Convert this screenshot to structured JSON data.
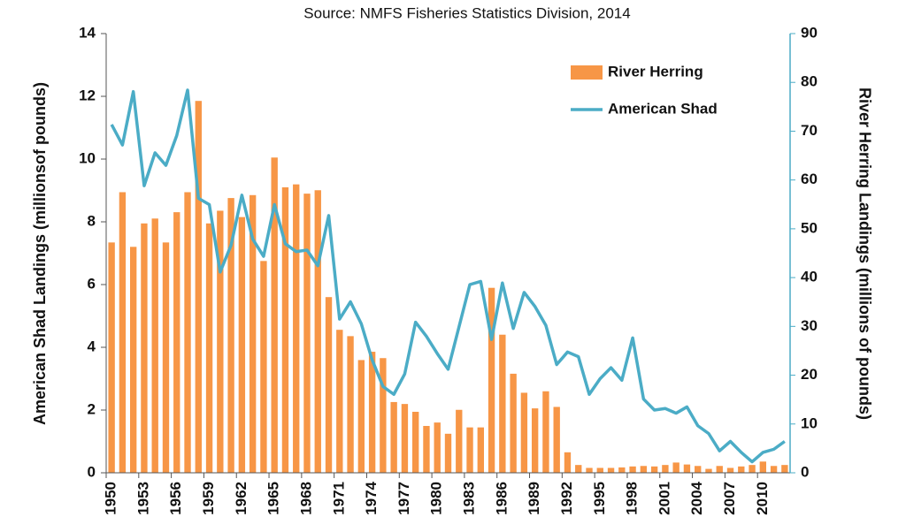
{
  "chart_data": {
    "type": "bar",
    "title": "Source: NMFS Fisheries Statistics Division, 2014",
    "y_label": "American Shad Landings (millionsof pounds)",
    "y2_label": "River Herring Landings (millions of pounds)",
    "categories": [
      "1950",
      null,
      null,
      "1953",
      null,
      null,
      "1956",
      null,
      null,
      "1959",
      null,
      null,
      "1962",
      null,
      null,
      "1965",
      null,
      null,
      "1968",
      null,
      null,
      "1971",
      null,
      null,
      "1974",
      null,
      null,
      "1977",
      null,
      null,
      "1980",
      null,
      null,
      "1983",
      null,
      null,
      "1986",
      null,
      null,
      "1989",
      null,
      null,
      "1992",
      null,
      null,
      "1995",
      null,
      null,
      "1998",
      null,
      null,
      "2001",
      null,
      null,
      "2004",
      null,
      null,
      "2007",
      null,
      null,
      "2010",
      null,
      null
    ],
    "series": [
      {
        "name": "River Herring",
        "type": "bar",
        "axis": "y2",
        "color": "#f79646",
        "values": [
          47.2,
          57.5,
          46.3,
          51.1,
          52.1,
          47.2,
          53.4,
          57.5,
          76.2,
          51.1,
          53.7,
          56.3,
          52.4,
          56.9,
          43.4,
          64.6,
          58.5,
          59.1,
          57.2,
          57.9,
          36,
          29.3,
          28,
          23.1,
          24.8,
          23.5,
          14.5,
          14.1,
          12.5,
          9.6,
          10.3,
          8,
          12.9,
          9.3,
          9.3,
          37.9,
          28.3,
          20.3,
          16.4,
          13.2,
          16.7,
          13.5,
          4.2,
          1.6,
          1,
          1,
          1,
          1.1,
          1.3,
          1.4,
          1.3,
          1.6,
          2.1,
          1.7,
          1.4,
          0.8,
          1.4,
          1,
          1.3,
          1.6,
          2.3,
          1.4,
          1.6
        ]
      },
      {
        "name": "American Shad",
        "type": "line",
        "color": "#4bacc6",
        "values": [
          11.1,
          10.45,
          12.15,
          9.15,
          10.2,
          9.8,
          10.75,
          12.2,
          8.75,
          8.55,
          6.4,
          7.25,
          8.85,
          7.45,
          6.9,
          8.55,
          7.3,
          7.05,
          7.1,
          6.6,
          8.2,
          4.9,
          5.45,
          4.75,
          3.6,
          2.75,
          2.5,
          3.15,
          4.8,
          4.35,
          3.8,
          3.3,
          4.65,
          6.0,
          6.1,
          4.25,
          6.05,
          4.6,
          5.75,
          5.3,
          4.7,
          3.45,
          3.85,
          3.7,
          2.5,
          3.0,
          3.35,
          2.95,
          4.3,
          2.35,
          2.0,
          2.05,
          1.9,
          2.1,
          1.5,
          1.25,
          0.7,
          1.0,
          0.65,
          0.35,
          0.65,
          0.75,
          1.0
        ]
      }
    ],
    "ylim": [
      0,
      14
    ],
    "yticks": [
      0,
      2,
      4,
      6,
      8,
      10,
      12,
      14
    ],
    "y2lim": [
      0,
      90
    ],
    "y2ticks": [
      0,
      10,
      20,
      30,
      40,
      50,
      60,
      70,
      80,
      90
    ],
    "legend": "upper right",
    "grid": false
  }
}
